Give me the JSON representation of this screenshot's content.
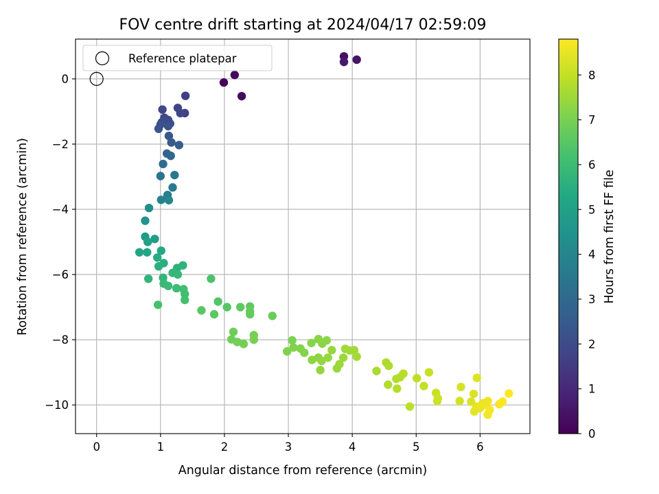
{
  "chart_data": {
    "type": "scatter",
    "title": "FOV centre drift starting at 2024/04/17 02:59:09",
    "xlabel": "Angular distance from reference (arcmin)",
    "ylabel": "Rotation from reference (arcmin)",
    "xlim": [
      -0.33,
      6.78
    ],
    "ylim": [
      -10.88,
      1.22
    ],
    "xticks": [
      0,
      1,
      2,
      3,
      4,
      5,
      6
    ],
    "yticks": [
      0,
      -2,
      -4,
      -6,
      -8,
      -10
    ],
    "xtick_labels": [
      "0",
      "1",
      "2",
      "3",
      "4",
      "5",
      "6"
    ],
    "ytick_labels": [
      "0",
      "−2",
      "−4",
      "−6",
      "−8",
      "−10"
    ],
    "grid": true,
    "legend": {
      "placement": "upper-left",
      "label": "Reference platepar"
    },
    "reference_point": {
      "x": 0,
      "y": 0
    },
    "colorbar": {
      "label": "Hours from first FF file",
      "colormap": "viridis",
      "range": [
        0,
        8.8
      ],
      "ticks": [
        0,
        1,
        2,
        3,
        4,
        5,
        6,
        7,
        8
      ],
      "tick_labels": [
        "0",
        "1",
        "2",
        "3",
        "4",
        "5",
        "6",
        "7",
        "8"
      ]
    },
    "points": [
      {
        "x": 1.99,
        "y": -0.11,
        "c": 0.1
      },
      {
        "x": 2.16,
        "y": 0.12,
        "c": 0.2
      },
      {
        "x": 2.27,
        "y": -0.53,
        "c": 0.3
      },
      {
        "x": 3.87,
        "y": 0.69,
        "c": 0.4
      },
      {
        "x": 4.07,
        "y": 0.59,
        "c": 0.5
      },
      {
        "x": 3.87,
        "y": 0.52,
        "c": 0.6
      },
      {
        "x": 1.39,
        "y": -0.52,
        "c": 1.6
      },
      {
        "x": 1.38,
        "y": -1.05,
        "c": 1.7
      },
      {
        "x": 1.27,
        "y": -0.89,
        "c": 1.8
      },
      {
        "x": 1.31,
        "y": -1.05,
        "c": 1.85
      },
      {
        "x": 1.03,
        "y": -0.94,
        "c": 1.9
      },
      {
        "x": 1.06,
        "y": -1.19,
        "c": 1.95
      },
      {
        "x": 1.12,
        "y": -1.26,
        "c": 2.0
      },
      {
        "x": 1.02,
        "y": -1.33,
        "c": 2.05
      },
      {
        "x": 1.15,
        "y": -1.37,
        "c": 2.1
      },
      {
        "x": 1.0,
        "y": -1.4,
        "c": 2.15
      },
      {
        "x": 1.12,
        "y": -1.45,
        "c": 2.2
      },
      {
        "x": 0.97,
        "y": -1.53,
        "c": 2.25
      },
      {
        "x": 1.13,
        "y": -1.75,
        "c": 2.4
      },
      {
        "x": 1.17,
        "y": -1.95,
        "c": 2.5
      },
      {
        "x": 1.29,
        "y": -2.03,
        "c": 2.6
      },
      {
        "x": 1.1,
        "y": -2.29,
        "c": 2.8
      },
      {
        "x": 1.16,
        "y": -2.36,
        "c": 2.9
      },
      {
        "x": 1.04,
        "y": -2.61,
        "c": 3.1
      },
      {
        "x": 1.0,
        "y": -2.98,
        "c": 3.3
      },
      {
        "x": 1.22,
        "y": -2.95,
        "c": 3.4
      },
      {
        "x": 1.19,
        "y": -3.33,
        "c": 3.6
      },
      {
        "x": 1.11,
        "y": -3.56,
        "c": 3.8
      },
      {
        "x": 1.01,
        "y": -3.71,
        "c": 3.9
      },
      {
        "x": 1.13,
        "y": -3.72,
        "c": 4.0
      },
      {
        "x": 0.82,
        "y": -3.96,
        "c": 4.3
      },
      {
        "x": 0.76,
        "y": -4.35,
        "c": 4.5
      },
      {
        "x": 0.76,
        "y": -4.84,
        "c": 4.8
      },
      {
        "x": 0.91,
        "y": -4.91,
        "c": 4.9
      },
      {
        "x": 0.8,
        "y": -5.0,
        "c": 5.0
      },
      {
        "x": 0.67,
        "y": -5.32,
        "c": 5.2
      },
      {
        "x": 0.79,
        "y": -5.32,
        "c": 5.25
      },
      {
        "x": 1.01,
        "y": -5.27,
        "c": 5.3
      },
      {
        "x": 0.95,
        "y": -5.48,
        "c": 5.4
      },
      {
        "x": 1.05,
        "y": -5.65,
        "c": 5.5
      },
      {
        "x": 0.97,
        "y": -5.75,
        "c": 5.55
      },
      {
        "x": 1.26,
        "y": -5.8,
        "c": 5.6
      },
      {
        "x": 1.35,
        "y": -5.72,
        "c": 5.65
      },
      {
        "x": 0.81,
        "y": -6.13,
        "c": 5.7
      },
      {
        "x": 1.04,
        "y": -6.1,
        "c": 5.75
      },
      {
        "x": 1.19,
        "y": -5.95,
        "c": 5.8
      },
      {
        "x": 1.27,
        "y": -6.0,
        "c": 5.85
      },
      {
        "x": 1.05,
        "y": -6.28,
        "c": 5.9
      },
      {
        "x": 1.12,
        "y": -6.35,
        "c": 5.95
      },
      {
        "x": 1.25,
        "y": -6.42,
        "c": 6.0
      },
      {
        "x": 1.36,
        "y": -6.45,
        "c": 6.05
      },
      {
        "x": 1.38,
        "y": -6.6,
        "c": 6.1
      },
      {
        "x": 1.38,
        "y": -6.78,
        "c": 6.15
      },
      {
        "x": 0.96,
        "y": -6.93,
        "c": 6.2
      },
      {
        "x": 1.79,
        "y": -6.13,
        "c": 6.3
      },
      {
        "x": 1.9,
        "y": -6.83,
        "c": 6.4
      },
      {
        "x": 2.04,
        "y": -7.0,
        "c": 6.45
      },
      {
        "x": 1.64,
        "y": -7.1,
        "c": 6.5
      },
      {
        "x": 1.84,
        "y": -7.22,
        "c": 6.55
      },
      {
        "x": 2.25,
        "y": -7.0,
        "c": 6.6
      },
      {
        "x": 2.4,
        "y": -6.98,
        "c": 6.65
      },
      {
        "x": 2.4,
        "y": -7.13,
        "c": 6.7
      },
      {
        "x": 2.4,
        "y": -7.22,
        "c": 6.72
      },
      {
        "x": 2.75,
        "y": -7.27,
        "c": 6.8
      },
      {
        "x": 2.14,
        "y": -7.76,
        "c": 6.85
      },
      {
        "x": 2.11,
        "y": -7.99,
        "c": 6.9
      },
      {
        "x": 2.2,
        "y": -8.07,
        "c": 6.92
      },
      {
        "x": 2.3,
        "y": -8.13,
        "c": 6.95
      },
      {
        "x": 2.46,
        "y": -7.86,
        "c": 6.97
      },
      {
        "x": 2.46,
        "y": -8.0,
        "c": 7.0
      },
      {
        "x": 3.06,
        "y": -8.02,
        "c": 7.05
      },
      {
        "x": 2.98,
        "y": -8.36,
        "c": 7.1
      },
      {
        "x": 3.08,
        "y": -8.24,
        "c": 7.12
      },
      {
        "x": 3.19,
        "y": -8.27,
        "c": 7.15
      },
      {
        "x": 3.25,
        "y": -8.4,
        "c": 7.17
      },
      {
        "x": 3.36,
        "y": -8.1,
        "c": 7.2
      },
      {
        "x": 3.47,
        "y": -7.98,
        "c": 7.22
      },
      {
        "x": 3.53,
        "y": -8.12,
        "c": 7.25
      },
      {
        "x": 3.6,
        "y": -8.02,
        "c": 7.27
      },
      {
        "x": 3.37,
        "y": -8.62,
        "c": 7.3
      },
      {
        "x": 3.47,
        "y": -8.55,
        "c": 7.32
      },
      {
        "x": 3.52,
        "y": -8.65,
        "c": 7.35
      },
      {
        "x": 3.5,
        "y": -8.93,
        "c": 7.37
      },
      {
        "x": 3.62,
        "y": -8.55,
        "c": 7.4
      },
      {
        "x": 3.68,
        "y": -8.32,
        "c": 7.42
      },
      {
        "x": 3.76,
        "y": -8.88,
        "c": 7.45
      },
      {
        "x": 3.8,
        "y": -8.75,
        "c": 7.47
      },
      {
        "x": 3.86,
        "y": -8.55,
        "c": 7.5
      },
      {
        "x": 3.89,
        "y": -8.28,
        "c": 7.52
      },
      {
        "x": 3.96,
        "y": -8.33,
        "c": 7.55
      },
      {
        "x": 4.03,
        "y": -8.32,
        "c": 7.57
      },
      {
        "x": 4.07,
        "y": -8.52,
        "c": 7.6
      },
      {
        "x": 4.38,
        "y": -8.96,
        "c": 7.65
      },
      {
        "x": 4.53,
        "y": -8.7,
        "c": 7.7
      },
      {
        "x": 4.57,
        "y": -8.8,
        "c": 7.72
      },
      {
        "x": 4.56,
        "y": -9.38,
        "c": 7.75
      },
      {
        "x": 4.69,
        "y": -9.2,
        "c": 7.77
      },
      {
        "x": 4.7,
        "y": -9.5,
        "c": 7.8
      },
      {
        "x": 4.75,
        "y": -9.15,
        "c": 7.82
      },
      {
        "x": 4.8,
        "y": -9.04,
        "c": 7.85
      },
      {
        "x": 4.9,
        "y": -10.05,
        "c": 7.9
      },
      {
        "x": 5.01,
        "y": -9.18,
        "c": 7.95
      },
      {
        "x": 5.12,
        "y": -9.42,
        "c": 8.0
      },
      {
        "x": 5.2,
        "y": -9.0,
        "c": 8.05
      },
      {
        "x": 5.31,
        "y": -9.63,
        "c": 8.1
      },
      {
        "x": 5.33,
        "y": -9.88,
        "c": 8.12
      },
      {
        "x": 5.34,
        "y": -9.8,
        "c": 8.15
      },
      {
        "x": 5.68,
        "y": -9.88,
        "c": 8.2
      },
      {
        "x": 5.7,
        "y": -9.45,
        "c": 8.25
      },
      {
        "x": 5.86,
        "y": -9.9,
        "c": 8.3
      },
      {
        "x": 5.9,
        "y": -9.66,
        "c": 8.35
      },
      {
        "x": 5.95,
        "y": -9.17,
        "c": 8.4
      },
      {
        "x": 5.91,
        "y": -10.2,
        "c": 8.45
      },
      {
        "x": 5.94,
        "y": -10.05,
        "c": 8.5
      },
      {
        "x": 6.0,
        "y": -10.1,
        "c": 8.52
      },
      {
        "x": 6.04,
        "y": -9.95,
        "c": 8.55
      },
      {
        "x": 6.1,
        "y": -10.0,
        "c": 8.6
      },
      {
        "x": 6.12,
        "y": -9.88,
        "c": 8.62
      },
      {
        "x": 6.12,
        "y": -10.3,
        "c": 8.65
      },
      {
        "x": 6.15,
        "y": -10.15,
        "c": 8.7
      },
      {
        "x": 6.3,
        "y": -9.98,
        "c": 8.72
      },
      {
        "x": 6.35,
        "y": -9.9,
        "c": 8.75
      },
      {
        "x": 6.45,
        "y": -9.65,
        "c": 8.8
      }
    ]
  }
}
